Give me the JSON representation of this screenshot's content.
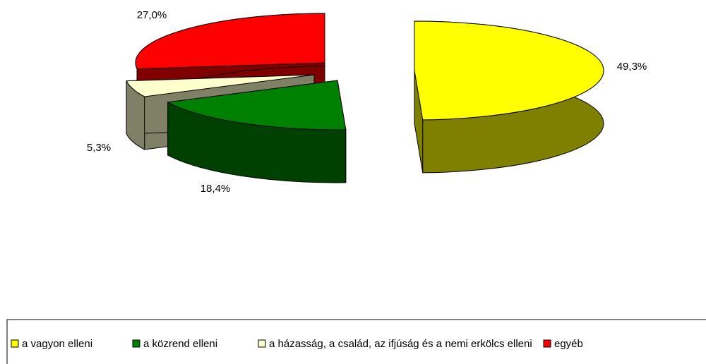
{
  "chart_data": {
    "type": "pie",
    "categories": [
      "a vagyon elleni",
      "a közrend elleni",
      "a házasság, a család, az ifjúság és a nemi erkölcs elleni",
      "egyéb"
    ],
    "values": [
      49.3,
      18.4,
      5.3,
      27.0
    ],
    "value_labels": [
      "49,3%",
      "18,4%",
      "5,3%",
      "27,0%"
    ],
    "colors": [
      "#ffff00",
      "#008000",
      "#ffffcc",
      "#ff0000"
    ],
    "legend": "bottom"
  }
}
